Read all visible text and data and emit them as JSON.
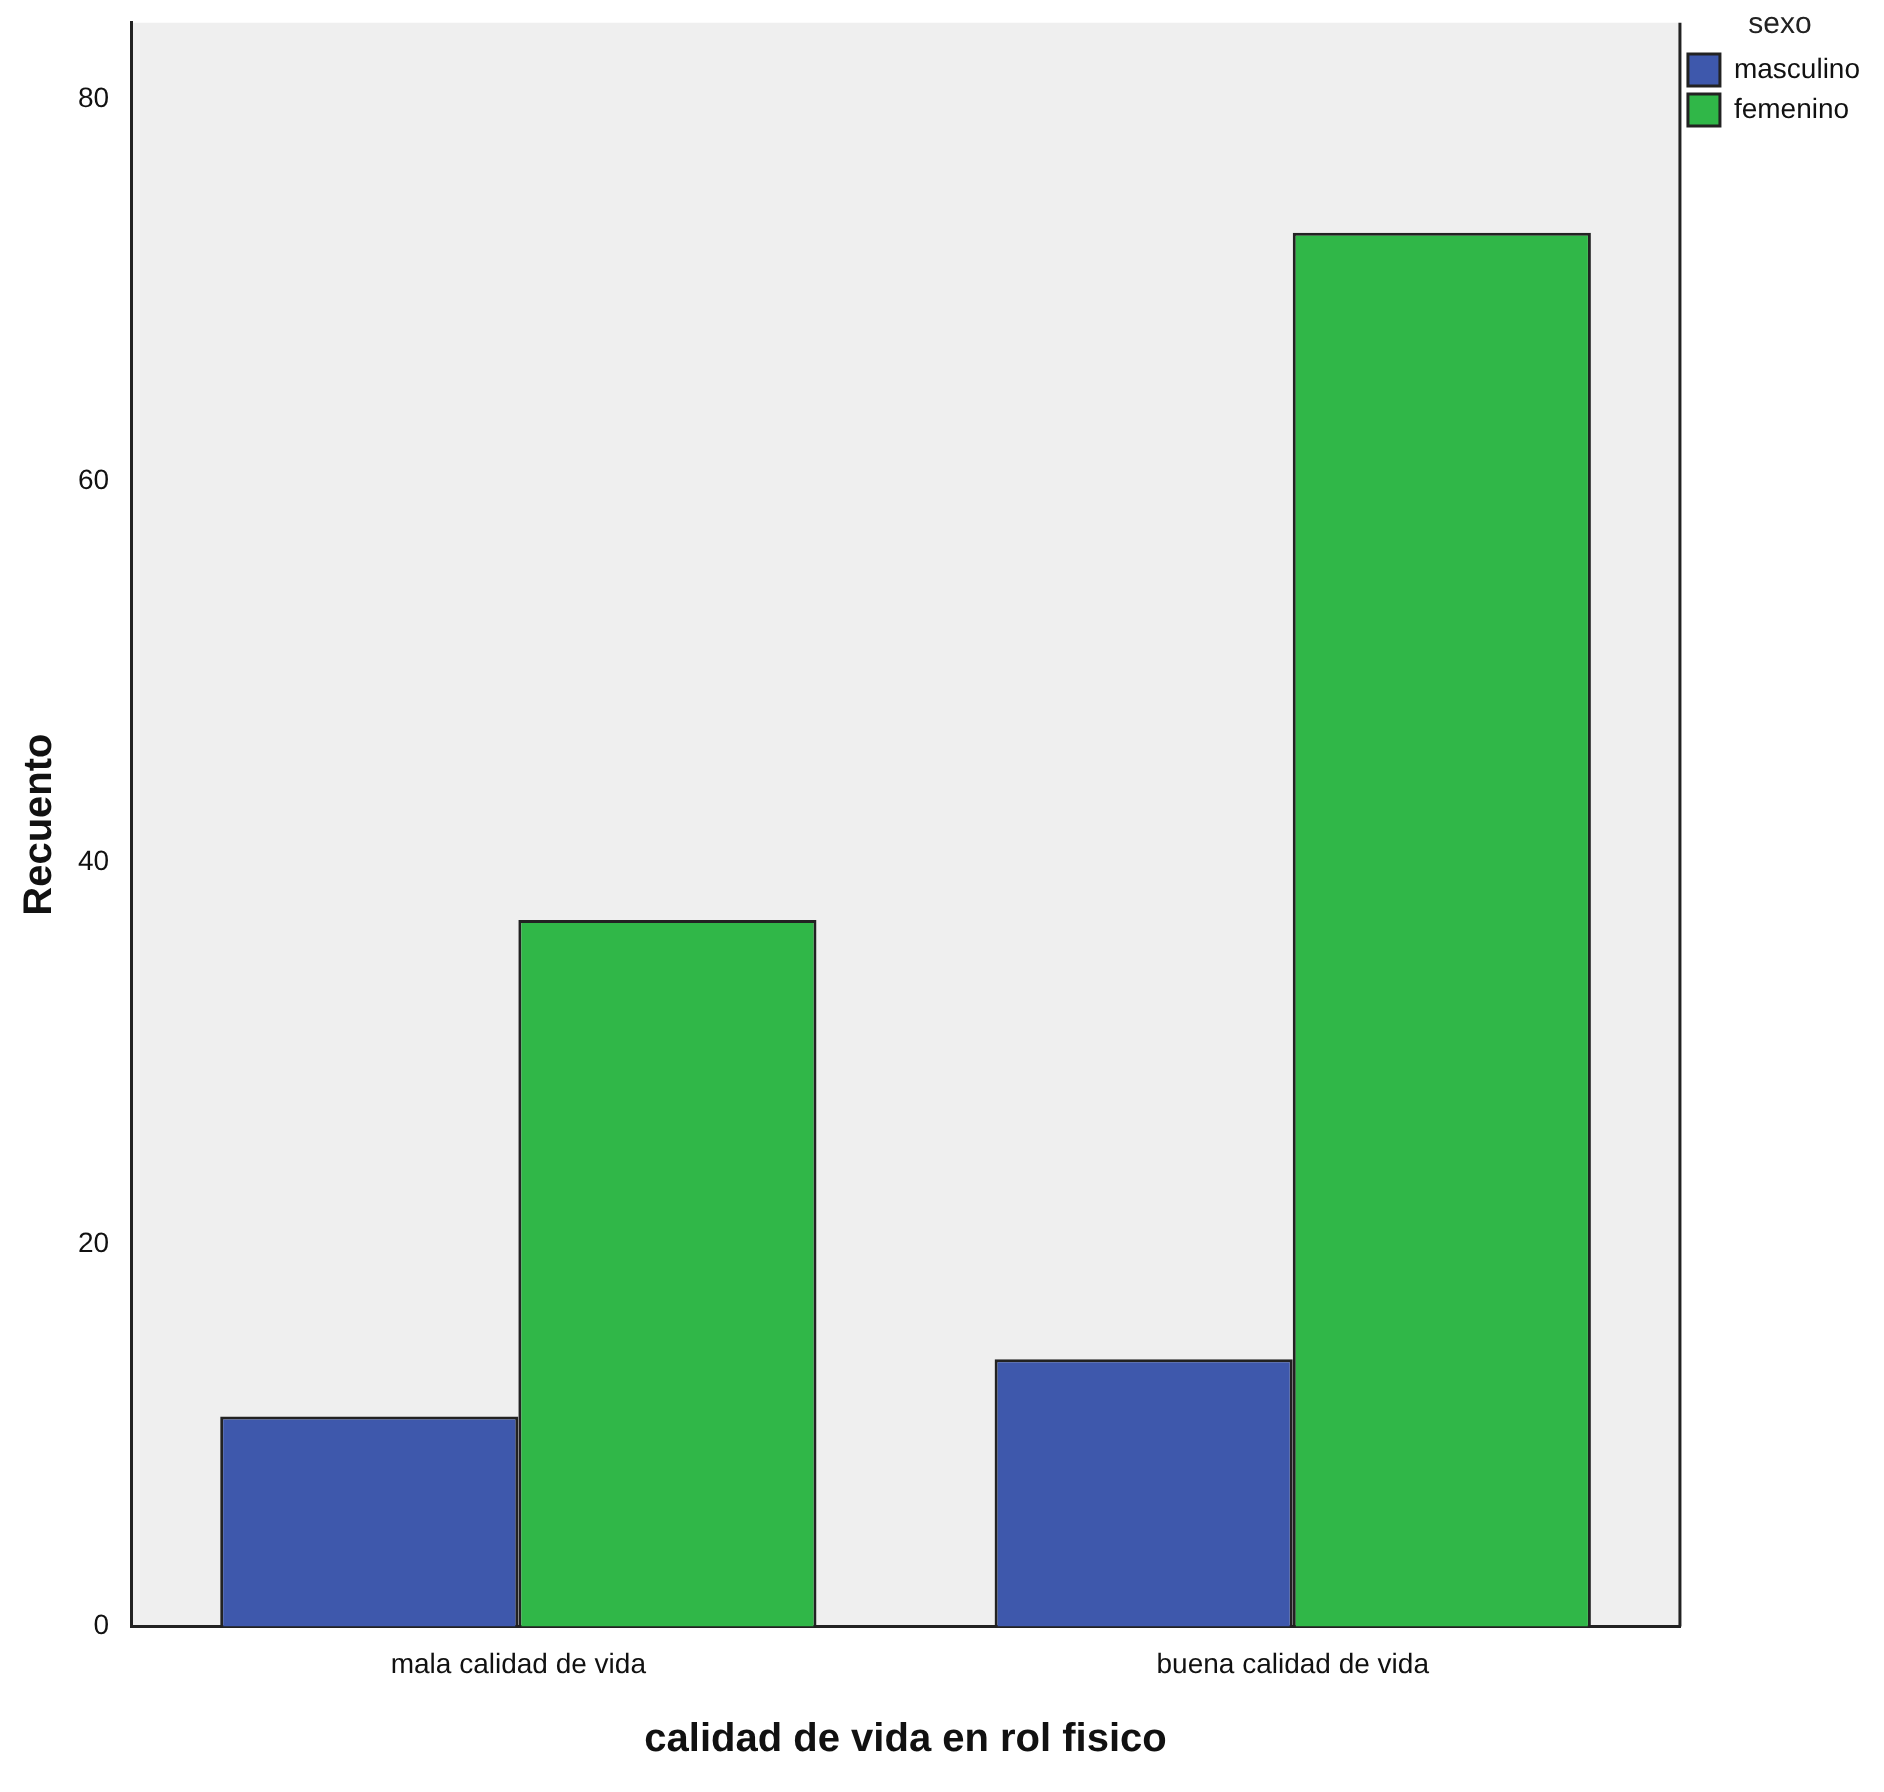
{
  "chart_data": {
    "type": "bar",
    "xlabel": "calidad de vida en rol fisico",
    "ylabel": "Recuento",
    "legend_title": "sexo",
    "categories": [
      "mala calidad de vida",
      "buena calidad de vida"
    ],
    "series": [
      {
        "name": "masculino",
        "color": "#3e58ac",
        "values": [
          11,
          14
        ]
      },
      {
        "name": "femenino",
        "color": "#30b748",
        "values": [
          37,
          73
        ]
      }
    ],
    "ylim": [
      0,
      84
    ],
    "yticks": [
      0,
      20,
      40,
      60,
      80
    ],
    "grid": false,
    "legend": "top right"
  }
}
